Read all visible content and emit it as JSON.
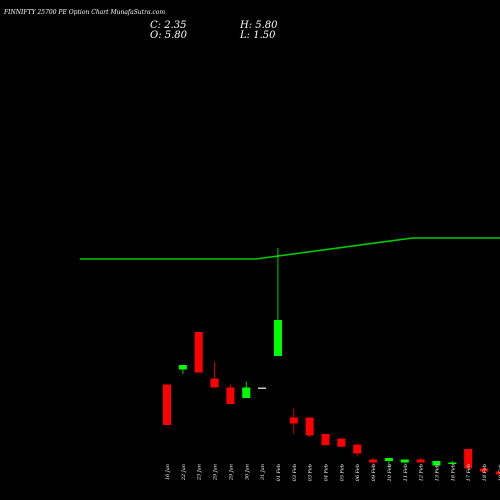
{
  "header": {
    "title": "FINNIFTY 25700  PE Option  Chart  MunafaSutra.com",
    "close": "C: 2.35",
    "open": "O: 5.80",
    "high": "H: 5.80",
    "low": "L: 1.50"
  },
  "colors": {
    "background": "#000000",
    "up": "#00ff00",
    "down": "#ff0000",
    "line": "#00cc00",
    "text": "#ffffff",
    "neutral": "#c8c8c8"
  },
  "chart_data": {
    "type": "candlestick",
    "categories": [
      "16 Jan",
      "22 Jan",
      "23 Jan",
      "29 Jan",
      "29 Jan",
      "30 Jan",
      "31 Jan",
      "01 Feb",
      "03 Feb",
      "03 Feb",
      "04 Feb",
      "05 Feb",
      "06 Feb",
      "09 Feb",
      "10 Feb",
      "11 Feb",
      "12 Feb",
      "13 Feb",
      "16 Feb",
      "17 Feb",
      "18 Feb",
      "19 Feb",
      "20 Feb"
    ],
    "candles": [
      {
        "open": 45.0,
        "high": 45.0,
        "low": 18.0,
        "close": 18.0
      },
      {
        "open": 55.0,
        "high": 58.0,
        "low": 52.0,
        "close": 58.0
      },
      {
        "open": 80.0,
        "high": 80.0,
        "low": 53.0,
        "close": 53.0
      },
      {
        "open": 49.0,
        "high": 60.0,
        "low": 43.0,
        "close": 43.0
      },
      {
        "open": 43.0,
        "high": 45.0,
        "low": 32.0,
        "close": 32.0
      },
      {
        "open": 36.0,
        "high": 47.0,
        "low": 36.0,
        "close": 43.0
      },
      {
        "open": 43.0,
        "high": 43.0,
        "low": 43.0,
        "close": 43.0
      },
      {
        "open": 64.0,
        "high": 136.0,
        "low": 64.0,
        "close": 88.0
      },
      {
        "open": 23.0,
        "high": 29.0,
        "low": 12.0,
        "close": 19.0
      },
      {
        "open": 23.0,
        "high": 23.0,
        "low": 10.0,
        "close": 11.0
      },
      {
        "open": 12.0,
        "high": 12.0,
        "low": 4.5,
        "close": 4.5
      },
      {
        "open": 9.0,
        "high": 9.0,
        "low": 3.5,
        "close": 3.5
      },
      {
        "open": 5.0,
        "high": 5.0,
        "low": -3.0,
        "close": -1.0
      },
      {
        "open": -5.0,
        "high": -4.0,
        "low": -10.0,
        "close": -7.0
      },
      {
        "open": -6.0,
        "high": -4.0,
        "low": -10.0,
        "close": -4.0
      },
      {
        "open": -7.0,
        "high": -5.0,
        "low": -7.5,
        "close": -5.0
      },
      {
        "open": -5.0,
        "high": -4.0,
        "low": -7.0,
        "close": -7.0
      },
      {
        "open": -9.0,
        "high": -6.0,
        "low": -9.0,
        "close": -6.0
      },
      {
        "open": -8.0,
        "high": -6.0,
        "low": -8.0,
        "close": -7.0
      },
      {
        "open": 2.0,
        "high": 2.0,
        "low": -11.0,
        "close": -11.0
      },
      {
        "open": -11.0,
        "high": -10.0,
        "low": -14.0,
        "close": -13.0
      },
      {
        "open": -13.0,
        "high": -13.0,
        "low": -15.0,
        "close": -15.0
      },
      {
        "open": -14.0,
        "high": -14.0,
        "low": -15.0,
        "close": -15.0
      }
    ],
    "ylim": [
      -20,
      145
    ],
    "overlay_line": {
      "points": [
        [
          -5.5,
          241
        ],
        [
          5.6,
          241
        ],
        [
          15.5,
          262
        ],
        [
          22.8,
          262
        ]
      ]
    },
    "grid": false,
    "legend": "none"
  }
}
